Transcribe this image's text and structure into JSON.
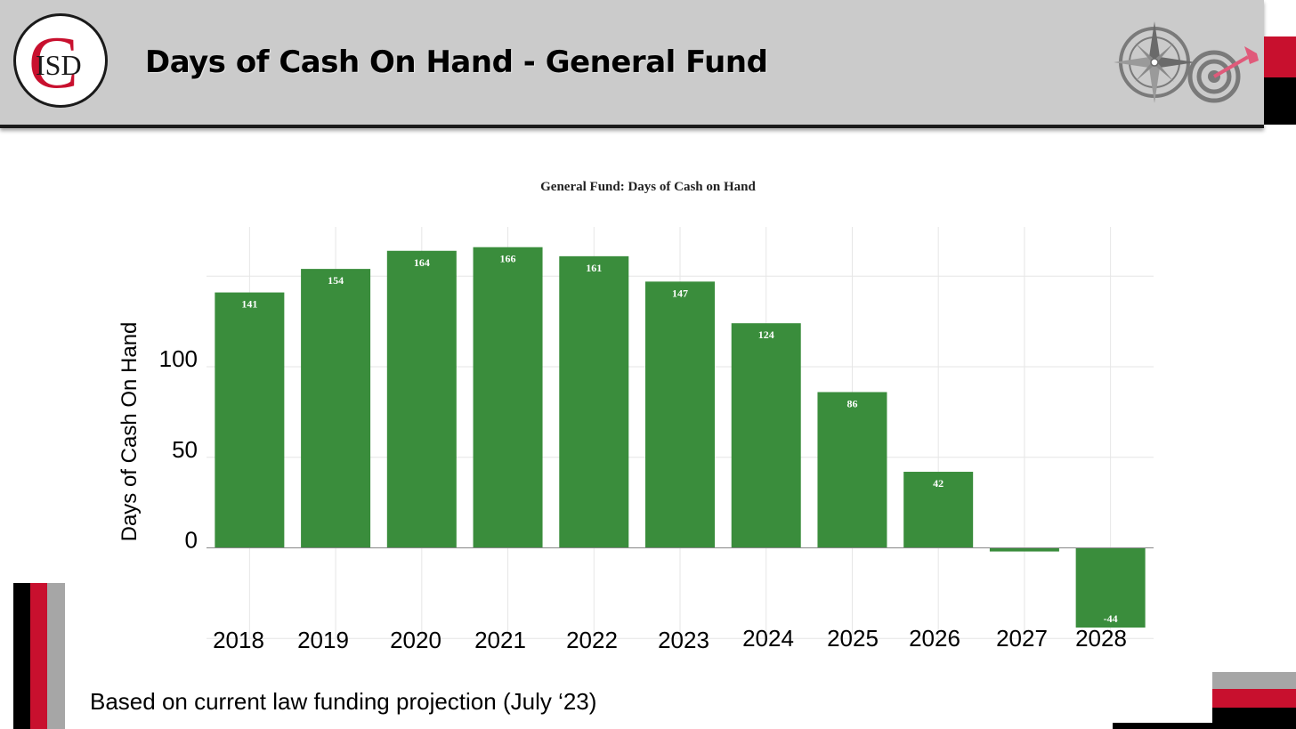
{
  "header": {
    "logo_text": "ISD",
    "logo_letter": "C",
    "title": "Days of Cash On Hand - General Fund"
  },
  "icons": [
    "compass-icon",
    "target-icon"
  ],
  "colors": {
    "bar": "#3a8d3c",
    "brand_red": "#c8102e",
    "header_bg": "#cbcbcb"
  },
  "chart_data": {
    "type": "bar",
    "title": "General Fund:  Days of Cash on Hand",
    "xlabel": "",
    "ylabel": "Days of Cash On Hand",
    "categories": [
      "2018",
      "2019",
      "2020",
      "2021",
      "2022",
      "2023",
      "2024",
      "2025",
      "2026",
      "2027",
      "2028"
    ],
    "values": [
      141,
      154,
      164,
      166,
      161,
      147,
      124,
      86,
      42,
      -2,
      -44
    ],
    "data_labels": [
      "141",
      "154",
      "164",
      "166",
      "161",
      "147",
      "124",
      "86",
      "42",
      "",
      "-44"
    ],
    "yticks": [
      0,
      50,
      100
    ],
    "ylim": [
      -50,
      175
    ],
    "grid": true,
    "legend": "none"
  },
  "footnote": "Based on current law funding projection (July ‘23)"
}
